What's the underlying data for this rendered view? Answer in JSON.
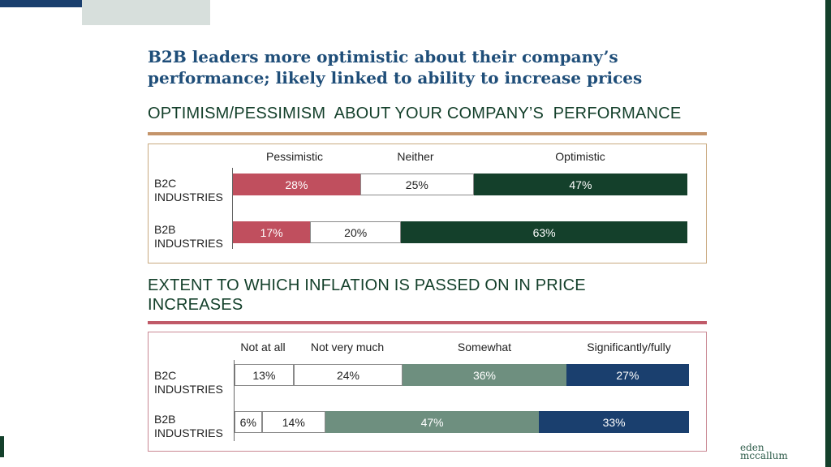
{
  "title": {
    "line1": "B2B leaders more optimistic about their company’s",
    "line2": "performance; likely linked to ability to increase prices"
  },
  "logo": {
    "line1": "eden",
    "line2": "mccallum"
  },
  "colors": {
    "pessimistic": "#c04f5e",
    "optimistic": "#14402b",
    "somewhat": "#6e8f7f",
    "significantly": "#1a3f6e",
    "neutral": "#ffffff"
  },
  "chart_data": [
    {
      "type": "bar",
      "stacked": true,
      "orientation": "horizontal",
      "title": "OPTIMISM/PESSIMISM  ABOUT YOUR COMPANY’S  PERFORMANCE",
      "categories": [
        "B2C INDUSTRIES",
        "B2B INDUSTRIES"
      ],
      "series": [
        {
          "name": "Pessimistic",
          "values": [
            28,
            17
          ],
          "labels": [
            "28%",
            "17%"
          ],
          "color": "#c04f5e"
        },
        {
          "name": "Neither",
          "values": [
            25,
            20
          ],
          "labels": [
            "25%",
            "20%"
          ],
          "color": "#ffffff"
        },
        {
          "name": "Optimistic",
          "values": [
            47,
            63
          ],
          "labels": [
            "47%",
            "63%"
          ],
          "color": "#14402b"
        }
      ],
      "xlim": [
        0,
        100
      ],
      "legend": "top"
    },
    {
      "type": "bar",
      "stacked": true,
      "orientation": "horizontal",
      "title": "EXTENT TO WHICH INFLATION IS PASSED ON IN PRICE INCREASES",
      "categories": [
        "B2C INDUSTRIES",
        "B2B INDUSTRIES"
      ],
      "series": [
        {
          "name": "Not at all",
          "values": [
            13,
            6
          ],
          "labels": [
            "13%",
            "6%"
          ],
          "color": "#ffffff"
        },
        {
          "name": "Not very much",
          "values": [
            24,
            14
          ],
          "labels": [
            "24%",
            "14%"
          ],
          "color": "#ffffff"
        },
        {
          "name": "Somewhat",
          "values": [
            36,
            47
          ],
          "labels": [
            "36%",
            "47%"
          ],
          "color": "#6e8f7f"
        },
        {
          "name": "Significantly/fully",
          "values": [
            27,
            33
          ],
          "labels": [
            "27%",
            "33%"
          ],
          "color": "#1a3f6e"
        }
      ],
      "xlim": [
        0,
        100
      ],
      "legend": "top"
    }
  ]
}
